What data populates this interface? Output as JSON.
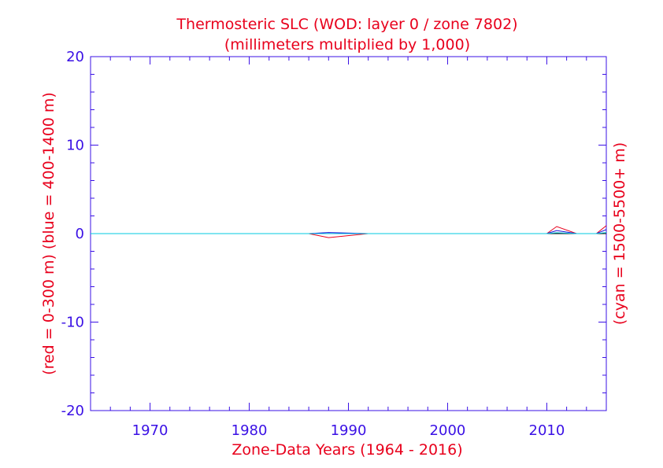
{
  "chart_data": {
    "type": "line",
    "title": "Thermosteric SLC (WOD: layer 0 / zone 7802)",
    "subtitle": "(millimeters multiplied by 1,000)",
    "xlabel": "Zone-Data Years (1964 - 2016)",
    "ylabel_left": "(red = 0-300 m)  (blue = 400-1400 m)",
    "ylabel_right": "(cyan = 1500-5500+ m)",
    "xlim": [
      1964,
      2016
    ],
    "ylim": [
      -20,
      20
    ],
    "x_ticks": [
      1970,
      1980,
      1990,
      2000,
      2010
    ],
    "y_ticks": [
      -20,
      -10,
      0,
      10,
      20
    ],
    "grid": false,
    "colors": {
      "red_series": "#e8001c",
      "blue_series": "#1a10d8",
      "cyan_series": "#00c8e0",
      "axis": "#3a10e5",
      "text": "#e8001c",
      "zero_line": "#000000"
    },
    "series": [
      {
        "color_key": "red_series",
        "x": [
          1964,
          1986,
          1988,
          1992,
          2010,
          2011,
          2013,
          2015,
          2016
        ],
        "y": [
          0,
          0,
          -0.45,
          0,
          0,
          0.8,
          0,
          0,
          0.9
        ]
      },
      {
        "color_key": "blue_series",
        "x": [
          1964,
          1986,
          1988,
          1992,
          2010,
          2011,
          2013,
          2015,
          2016
        ],
        "y": [
          0,
          0,
          0.12,
          0,
          0,
          0.35,
          0,
          0,
          0.45
        ]
      },
      {
        "color_key": "cyan_series",
        "x": [
          1964,
          2010,
          2011,
          2013,
          2015,
          2016
        ],
        "y": [
          0,
          0,
          0.1,
          0,
          0,
          0.12
        ]
      }
    ]
  }
}
